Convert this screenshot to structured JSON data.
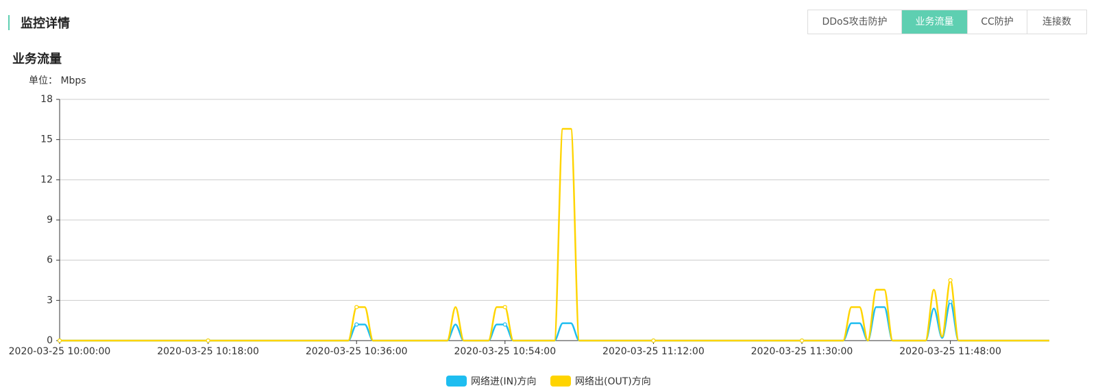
{
  "header": {
    "title": "监控详情",
    "tabs": [
      "DDoS攻击防护",
      "业务流量",
      "CC防护",
      "连接数"
    ],
    "active_tab": 1
  },
  "chart_data": {
    "type": "line",
    "title": "业务流量",
    "unit_label": "单位： Mbps",
    "x": [
      "2020-03-25 10:00:00",
      "2020-03-25 10:18:00",
      "2020-03-25 10:35:00",
      "2020-03-25 10:36:00",
      "2020-03-25 10:37:00",
      "2020-03-25 10:38:00",
      "2020-03-25 10:47:00",
      "2020-03-25 10:48:00",
      "2020-03-25 10:49:00",
      "2020-03-25 10:52:00",
      "2020-03-25 10:53:00",
      "2020-03-25 10:54:00",
      "2020-03-25 10:55:00",
      "2020-03-25 11:00:00",
      "2020-03-25 11:01:00",
      "2020-03-25 11:02:00",
      "2020-03-25 11:03:00",
      "2020-03-25 11:12:00",
      "2020-03-25 11:30:00",
      "2020-03-25 11:35:00",
      "2020-03-25 11:36:00",
      "2020-03-25 11:37:00",
      "2020-03-25 11:38:00",
      "2020-03-25 11:39:00",
      "2020-03-25 11:40:00",
      "2020-03-25 11:41:00",
      "2020-03-25 11:45:00",
      "2020-03-25 11:46:00",
      "2020-03-25 11:47:00",
      "2020-03-25 11:48:00",
      "2020-03-25 11:49:00",
      "2020-03-25 12:00:00"
    ],
    "series": [
      {
        "name": "网络进(IN)方向",
        "color": "#1ebdf0",
        "values": [
          0,
          0,
          0,
          1.2,
          1.2,
          0,
          0,
          1.2,
          0,
          0,
          1.2,
          1.2,
          0,
          0,
          1.3,
          1.3,
          0,
          0,
          0,
          0,
          1.3,
          1.3,
          0,
          2.5,
          2.5,
          0,
          0,
          2.4,
          0.2,
          2.9,
          0,
          0
        ]
      },
      {
        "name": "网络出(OUT)方向",
        "color": "#ffd400",
        "values": [
          0,
          0,
          0,
          2.5,
          2.5,
          0,
          0,
          2.5,
          0,
          0,
          2.5,
          2.5,
          0,
          0,
          15.8,
          15.8,
          0,
          0,
          0,
          0,
          2.5,
          2.5,
          0,
          3.8,
          3.8,
          0,
          0,
          3.8,
          0.3,
          4.5,
          0,
          0
        ]
      }
    ],
    "xlim": [
      "2020-03-25 10:00:00",
      "2020-03-25 12:00:00"
    ],
    "xticks": [
      "2020-03-25 10:00:00",
      "2020-03-25 10:18:00",
      "2020-03-25 10:36:00",
      "2020-03-25 10:54:00",
      "2020-03-25 11:12:00",
      "2020-03-25 11:30:00",
      "2020-03-25 11:48:00"
    ],
    "ylim": [
      0,
      18
    ],
    "yticks": [
      0,
      3,
      6,
      9,
      12,
      15,
      18
    ],
    "grid": true,
    "legend": "bottom"
  }
}
